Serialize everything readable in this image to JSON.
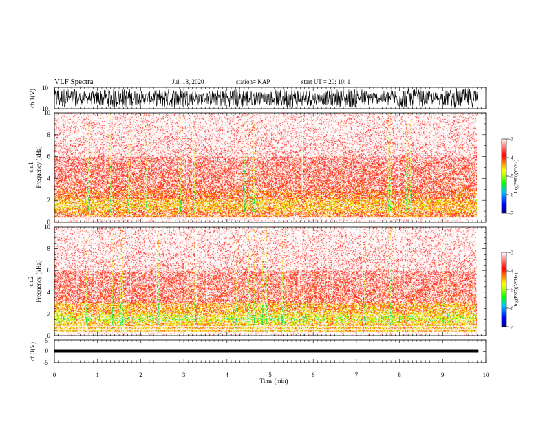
{
  "header": {
    "title": "VLF Spectra",
    "date": "Jul. 18, 2020",
    "station": "station= KAP",
    "start": "start UT =  20: 10: 1"
  },
  "colors": {
    "wave_trace": "#000000",
    "colormap": [
      "#000080",
      "#0000ff",
      "#00c0ff",
      "#00ff00",
      "#c8ff00",
      "#ffff00",
      "#ff8000",
      "#ff0000",
      "#ff8080",
      "#ffffff"
    ]
  },
  "chart_data": [
    {
      "type": "line",
      "name": "ch1-waveform",
      "ylabel": "ch.1(V)",
      "ylim": [
        -10,
        10
      ],
      "yticks": [
        "10",
        "-10"
      ],
      "xlim": [
        0,
        10
      ]
    },
    {
      "type": "heatmap",
      "name": "ch1-spectrogram",
      "ylabel": [
        "ch.1",
        "Frequency (kHz)"
      ],
      "ylim": [
        0,
        10
      ],
      "yticks": [
        "0",
        "2",
        "4",
        "6",
        "8",
        "10"
      ],
      "xlim": [
        0,
        9.83
      ],
      "colorbar": {
        "label": "log(PSD)(V²/Hz)",
        "range": [
          -7,
          -3
        ],
        "ticks": [
          "-3",
          "-4",
          "-5",
          "-6",
          "-7"
        ]
      }
    },
    {
      "type": "heatmap",
      "name": "ch2-spectrogram",
      "ylabel": [
        "ch.2",
        "Frequency (kHz)"
      ],
      "ylim": [
        0,
        10
      ],
      "yticks": [
        "0",
        "2",
        "4",
        "6",
        "8",
        "10"
      ],
      "xlim": [
        0,
        9.83
      ],
      "colorbar": {
        "label": "log(PSD)(V²/Hz)",
        "range": [
          -7,
          -3
        ],
        "ticks": [
          "-3",
          "-4",
          "-5",
          "-6",
          "-7"
        ]
      }
    },
    {
      "type": "line",
      "name": "ch3-waveform",
      "ylabel": "ch.3(V)",
      "ylim": [
        -5,
        5
      ],
      "yticks": [
        "5",
        "0",
        "-5"
      ],
      "xlim": [
        0,
        10
      ]
    }
  ],
  "xaxis": {
    "label": "Time (min)",
    "range": [
      0,
      10
    ],
    "ticks": [
      "0",
      "1",
      "2",
      "3",
      "4",
      "5",
      "6",
      "7",
      "8",
      "9",
      "10"
    ]
  }
}
